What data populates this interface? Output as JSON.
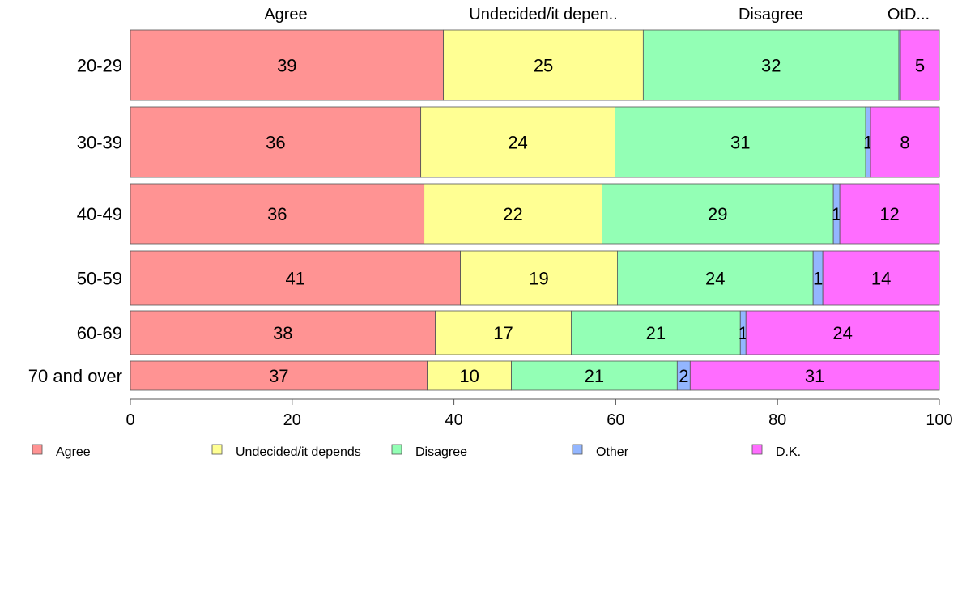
{
  "chart_data": {
    "type": "bar",
    "orientation": "horizontal",
    "stacked": true,
    "title": "",
    "xlabel": "",
    "ylabel": "",
    "xlim": [
      0,
      100
    ],
    "x_ticks": [
      "0",
      "20",
      "40",
      "60",
      "80",
      "100"
    ],
    "grid": false,
    "legend_position": "bottom",
    "categories": [
      "20-29",
      "30-39",
      "40-49",
      "50-59",
      "60-69",
      "70 and over"
    ],
    "top_labels": [
      "Agree",
      "Undecided/it depen..",
      "Disagree",
      "OtD..."
    ],
    "series": [
      {
        "name": "Agree",
        "color": "#ff9393",
        "values": [
          38.7,
          35.9,
          36.3,
          40.8,
          37.7,
          36.7
        ],
        "labels": [
          "39",
          "36",
          "36",
          "41",
          "38",
          "37"
        ]
      },
      {
        "name": "Undecided/it depends",
        "color": "#ffff93",
        "values": [
          24.7,
          24.0,
          22.0,
          19.4,
          16.8,
          10.4
        ],
        "labels": [
          "25",
          "24",
          "22",
          "19",
          "17",
          "10"
        ]
      },
      {
        "name": "Disagree",
        "color": "#93ffb5",
        "values": [
          31.6,
          31.0,
          28.6,
          24.2,
          20.9,
          20.5
        ],
        "labels": [
          "32",
          "31",
          "29",
          "24",
          "21",
          "21"
        ]
      },
      {
        "name": "Other",
        "color": "#93b6ff",
        "values": [
          0.2,
          0.6,
          0.8,
          1.2,
          0.7,
          1.6
        ],
        "labels": [
          "",
          "1",
          "1",
          "1",
          "1",
          "2"
        ]
      },
      {
        "name": "D.K.",
        "color": "#ff6dff",
        "values": [
          4.8,
          8.5,
          12.3,
          14.4,
          23.9,
          30.8
        ],
        "labels": [
          "5",
          "8",
          "12",
          "14",
          "24",
          "31"
        ]
      }
    ]
  }
}
